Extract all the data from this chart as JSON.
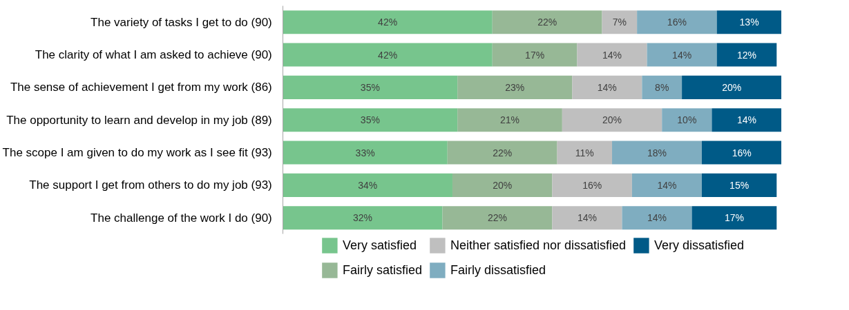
{
  "chart_data": {
    "type": "bar",
    "orientation": "horizontal",
    "stacked": true,
    "legend": "bottom",
    "categories": [
      "The variety of tasks I get to do  (90)",
      "The clarity of what I am asked to achieve  (90)",
      "The sense of achievement I get from my work  (86)",
      "The opportunity to learn and develop in my job  (89)",
      "The scope I am given to do my work as I see fit  (93)",
      "The support I get from others to do my job  (93)",
      "The challenge of the work I do  (90)"
    ],
    "series": [
      {
        "name": "Very satisfied",
        "color": "#77c58d",
        "values": [
          42,
          42,
          35,
          35,
          33,
          34,
          32
        ],
        "value_labels": [
          "42%",
          "42%",
          "35%",
          "35%",
          "33%",
          "34%",
          "32%"
        ]
      },
      {
        "name": "Fairly satisfied",
        "color": "#97b896",
        "values": [
          22,
          17,
          23,
          21,
          22,
          20,
          22
        ],
        "value_labels": [
          "22%",
          "17%",
          "23%",
          "21%",
          "22%",
          "20%",
          "22%"
        ]
      },
      {
        "name": "Neither satisfied nor dissatisfied",
        "color": "#bfbfbf",
        "values": [
          7,
          14,
          14,
          20,
          11,
          16,
          14
        ],
        "value_labels": [
          "7%",
          "14%",
          "14%",
          "20%",
          "11%",
          "16%",
          "14%"
        ]
      },
      {
        "name": "Fairly dissatisfied",
        "color": "#7fadc0",
        "values": [
          16,
          14,
          8,
          10,
          18,
          14,
          14
        ],
        "value_labels": [
          "16%",
          "14%",
          "8%",
          "10%",
          "18%",
          "14%",
          "14%"
        ]
      },
      {
        "name": "Very dissatisfied",
        "color": "#005a87",
        "values": [
          13,
          12,
          20,
          14,
          16,
          15,
          17
        ],
        "value_labels": [
          "13%",
          "12%",
          "20%",
          "14%",
          "16%",
          "15%",
          "17%"
        ]
      }
    ]
  }
}
